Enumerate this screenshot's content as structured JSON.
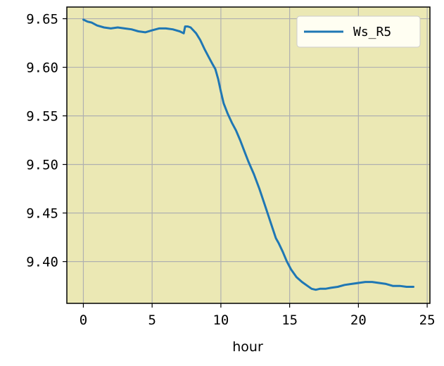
{
  "chart_data": {
    "type": "line",
    "title": "",
    "xlabel": "hour",
    "ylabel": "",
    "xlim": [
      -1.2,
      25.2
    ],
    "ylim": [
      9.357,
      9.662
    ],
    "xticks": [
      0,
      5,
      10,
      15,
      20,
      25
    ],
    "yticks": [
      9.4,
      9.45,
      9.5,
      9.55,
      9.6,
      9.65
    ],
    "xtick_labels": [
      "0",
      "5",
      "10",
      "15",
      "20",
      "25"
    ],
    "ytick_labels": [
      "9.40",
      "9.45",
      "9.50",
      "9.55",
      "9.60",
      "9.65"
    ],
    "grid": true,
    "legend_position": "top-right",
    "plot_background": "#ebe8b4",
    "line_color": "#1f77b4",
    "series": [
      {
        "name": "Ws_R5",
        "x": [
          0,
          0.3,
          0.6,
          1.0,
          1.5,
          2.0,
          2.5,
          3.0,
          3.5,
          4.0,
          4.5,
          5.0,
          5.5,
          6.0,
          6.5,
          7.0,
          7.3,
          7.4,
          7.6,
          7.8,
          8.0,
          8.2,
          8.5,
          8.8,
          9.1,
          9.4,
          9.6,
          9.8,
          10.0,
          10.2,
          10.5,
          10.8,
          11.1,
          11.4,
          11.7,
          12.0,
          12.4,
          12.8,
          13.2,
          13.6,
          14.0,
          14.2,
          14.5,
          14.8,
          15.1,
          15.5,
          15.9,
          16.3,
          16.6,
          16.9,
          17.2,
          17.6,
          18.0,
          18.5,
          19.0,
          19.5,
          20.0,
          20.5,
          21.0,
          21.5,
          22.0,
          22.5,
          23.0,
          23.5,
          24.0
        ],
        "y": [
          9.649,
          9.647,
          9.646,
          9.643,
          9.641,
          9.64,
          9.641,
          9.64,
          9.639,
          9.637,
          9.636,
          9.638,
          9.64,
          9.64,
          9.639,
          9.637,
          9.635,
          9.642,
          9.642,
          9.641,
          9.638,
          9.635,
          9.628,
          9.619,
          9.611,
          9.603,
          9.598,
          9.588,
          9.575,
          9.563,
          9.552,
          9.543,
          9.535,
          9.525,
          9.514,
          9.503,
          9.49,
          9.475,
          9.458,
          9.441,
          9.424,
          9.419,
          9.41,
          9.4,
          9.392,
          9.384,
          9.379,
          9.375,
          9.372,
          9.371,
          9.372,
          9.372,
          9.373,
          9.374,
          9.376,
          9.377,
          9.378,
          9.379,
          9.379,
          9.378,
          9.377,
          9.375,
          9.375,
          9.374,
          9.374
        ]
      }
    ]
  }
}
